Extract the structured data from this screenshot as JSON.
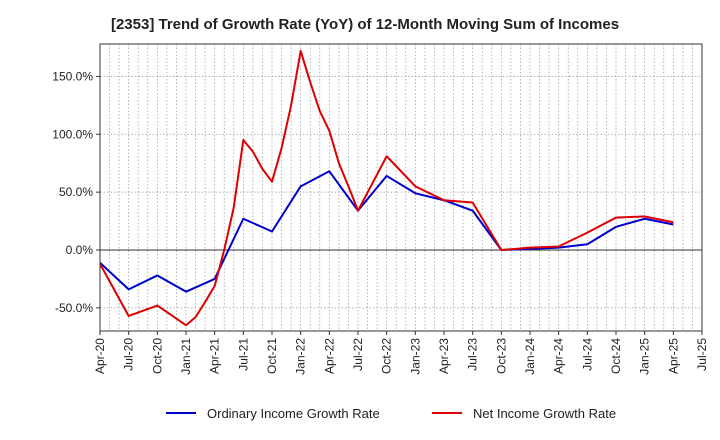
{
  "chart_data": {
    "type": "line",
    "title": "[2353]  Trend of Growth Rate (YoY) of 12-Month Moving Sum of Incomes",
    "xlabel": "",
    "ylabel": "",
    "x_ticks": [
      "Apr-20",
      "Jul-20",
      "Oct-20",
      "Jan-21",
      "Apr-21",
      "Jul-21",
      "Oct-21",
      "Jan-22",
      "Apr-22",
      "Jul-22",
      "Oct-22",
      "Jan-23",
      "Apr-23",
      "Jul-23",
      "Oct-23",
      "Jan-24",
      "Apr-24",
      "Jul-24",
      "Oct-24",
      "Jan-25",
      "Apr-25",
      "Jul-25"
    ],
    "y_ticks": [
      -50,
      0,
      50,
      100,
      150
    ],
    "y_tick_labels": [
      "-50.0%",
      "0.0%",
      "50.0%",
      "100.0%",
      "150.0%"
    ],
    "ylim": [
      -70,
      178
    ],
    "grid": true,
    "legend_position": "bottom",
    "series": [
      {
        "name": "Ordinary Income Growth Rate",
        "color": "#0000cc",
        "x": [
          0,
          3,
          6,
          9,
          12,
          15,
          18,
          21,
          24,
          27,
          30,
          33,
          36,
          39,
          42,
          45,
          48,
          51,
          54,
          57,
          60
        ],
        "values": [
          -11,
          -34,
          -22,
          -36,
          -25,
          27,
          16,
          55,
          68,
          34,
          64,
          49,
          43,
          34,
          0,
          1,
          2,
          5,
          20,
          27,
          22
        ]
      },
      {
        "name": "Net Income Growth Rate",
        "color": "#dd0000",
        "x": [
          0,
          3,
          6,
          9,
          10,
          11,
          12,
          13,
          14,
          15,
          16,
          17,
          18,
          19,
          20,
          21,
          22,
          23,
          24,
          25,
          26,
          27,
          30,
          33,
          36,
          39,
          42,
          45,
          48,
          51,
          54,
          57,
          60
        ],
        "values": [
          -12,
          -57,
          -48,
          -65,
          -58,
          -45,
          -31,
          0,
          37,
          95,
          85,
          70,
          59,
          88,
          125,
          172,
          145,
          120,
          103,
          75,
          55,
          34,
          81,
          55,
          43,
          41,
          0,
          2,
          3,
          15,
          28,
          29,
          24
        ]
      }
    ]
  }
}
